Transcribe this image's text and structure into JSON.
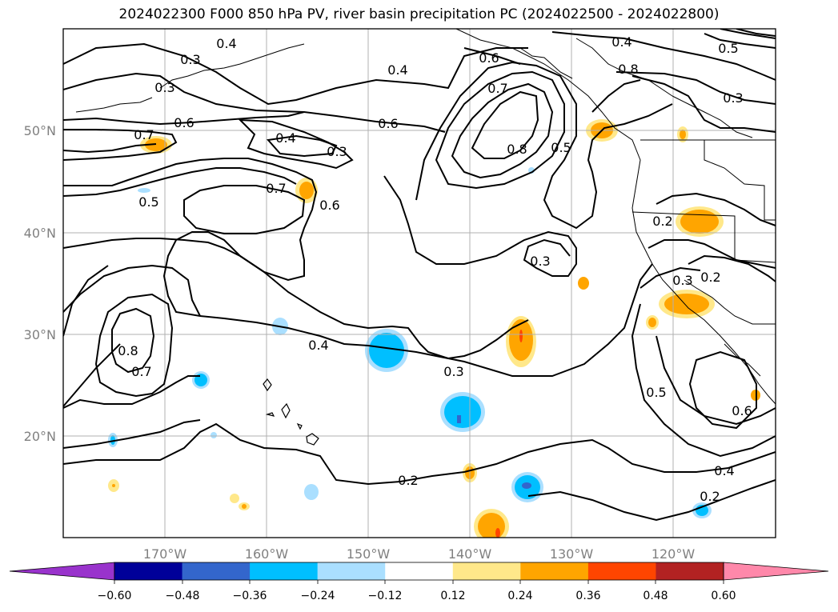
{
  "title": "2024022300 F000 850 hPa PV, river basin precipitation PC (2024022500 - 2024022800)",
  "map": {
    "lon_range": [
      -180,
      -110
    ],
    "lat_range": [
      10,
      60
    ],
    "lon_ticks": [
      "170°W",
      "160°W",
      "150°W",
      "140°W",
      "130°W",
      "120°W"
    ],
    "lat_ticks": [
      "50°N",
      "40°N",
      "30°N",
      "20°N"
    ],
    "grid": true,
    "contour_labels": [
      "0.4",
      "0.3",
      "0.4",
      "0.3",
      "0.6",
      "0.7",
      "0.4",
      "0.3",
      "0.6",
      "0.7",
      "0.5",
      "0.6",
      "0.4",
      "0.3",
      "0.8",
      "0.6",
      "0.8",
      "0.5",
      "0.5",
      "0.7",
      "0.8",
      "0.7",
      "0.4",
      "0.3",
      "0.2",
      "0.3",
      "0.2",
      "0.3",
      "0.5",
      "0.6",
      "0.4",
      "0.2",
      "0.2"
    ]
  },
  "colorbar": {
    "ticks": [
      "−0.60",
      "−0.48",
      "−0.36",
      "−0.24",
      "−0.12",
      "0.12",
      "0.24",
      "0.36",
      "0.48",
      "0.60"
    ],
    "colors": [
      "#9933cc",
      "#000099",
      "#3366cc",
      "#00bfff",
      "#aadfff",
      "#ffffff",
      "#ffe88a",
      "#ffa500",
      "#ff4500",
      "#b22222",
      "#ff88aa"
    ]
  }
}
